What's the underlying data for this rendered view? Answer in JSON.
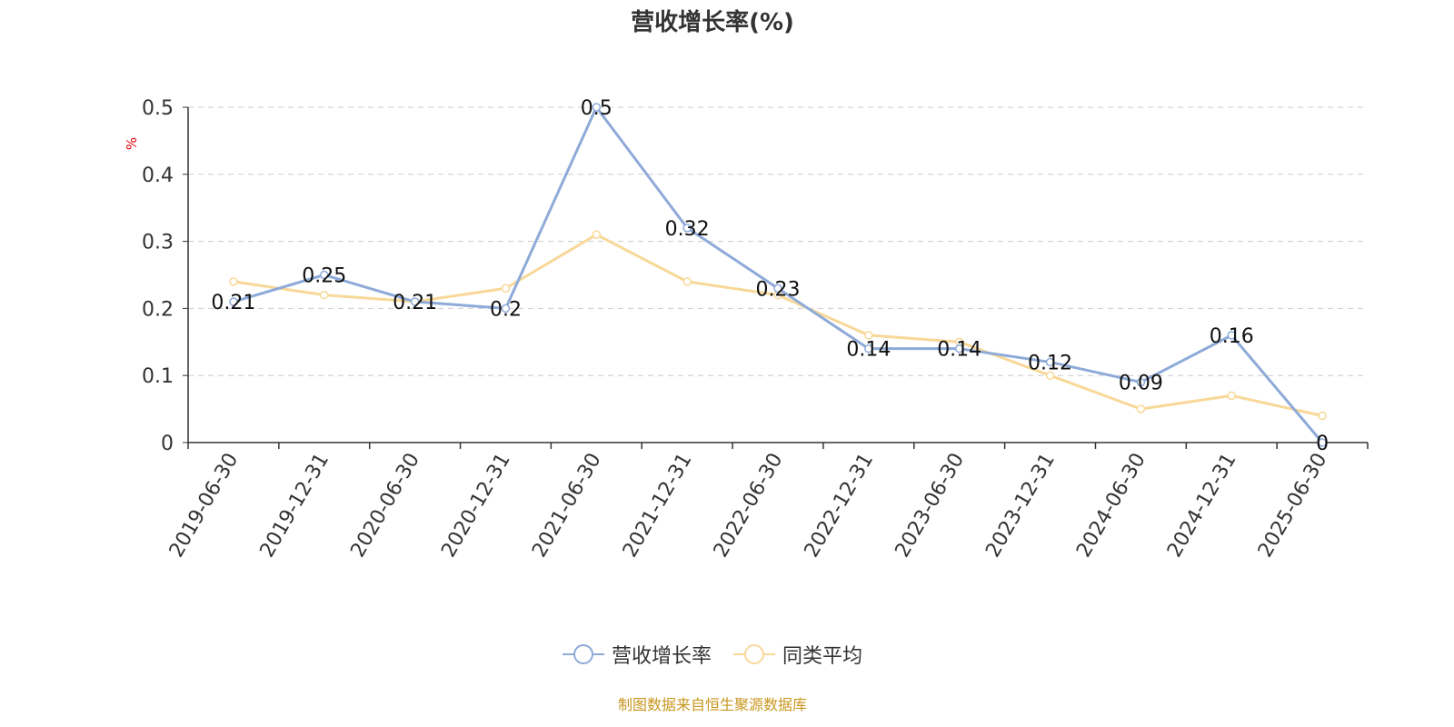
{
  "chart_data": {
    "type": "line",
    "title": "营收增长率(%)",
    "ylabel": "%",
    "ylim": [
      0,
      0.5
    ],
    "yticks": [
      "0",
      "0.1",
      "0.2",
      "0.3",
      "0.4",
      "0.5"
    ],
    "grid": true,
    "legend_position": "bottom",
    "categories": [
      "2019-06-30",
      "2019-12-31",
      "2020-06-30",
      "2020-12-31",
      "2021-06-30",
      "2021-12-31",
      "2022-06-30",
      "2022-12-31",
      "2023-06-30",
      "2023-12-31",
      "2024-06-30",
      "2024-12-31",
      "2025-06-30"
    ],
    "series": [
      {
        "name": "营收增长率",
        "color": "#8eaad8",
        "values": [
          0.21,
          0.25,
          0.21,
          0.2,
          0.5,
          0.32,
          0.23,
          0.14,
          0.14,
          0.12,
          0.09,
          0.16,
          0
        ],
        "labels": [
          "0.21",
          "0.25",
          "0.21",
          "0.2",
          "0.5",
          "0.32",
          "0.23",
          "0.14",
          "0.14",
          "0.12",
          "0.09",
          "0.16",
          "0"
        ]
      },
      {
        "name": "同类平均",
        "color": "#f8d898",
        "values": [
          0.24,
          0.22,
          0.21,
          0.23,
          0.31,
          0.24,
          0.22,
          0.16,
          0.15,
          0.1,
          0.05,
          0.07,
          0.04
        ]
      }
    ]
  },
  "source": "制图数据来自恒生聚源数据库"
}
